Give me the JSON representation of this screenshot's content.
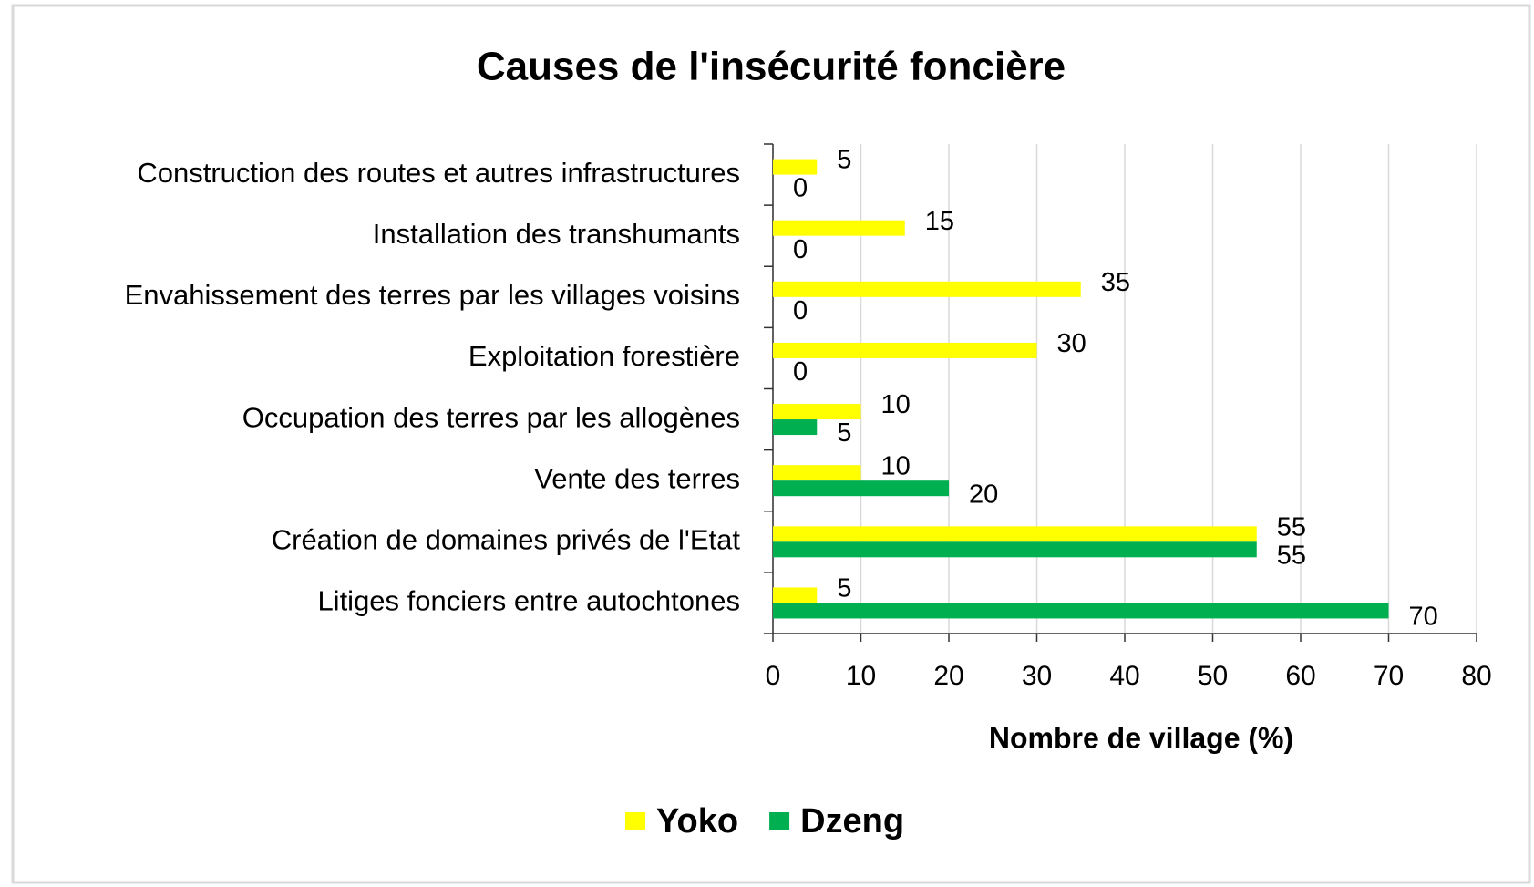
{
  "chart_data": {
    "type": "barh",
    "title": "Causes de l'insécurité foncière",
    "categories": [
      "Construction des routes et autres infrastructures",
      "Installation des transhumants",
      "Envahissement des terres par les villages voisins",
      "Exploitation forestière",
      "Occupation des terres par les allogènes",
      "Vente des terres",
      "Création de domaines privés de l'Etat",
      "Litiges fonciers entre autochtones"
    ],
    "series": [
      {
        "name": "Yoko",
        "color": "#ffff00",
        "values": [
          5,
          15,
          35,
          30,
          10,
          10,
          55,
          5
        ]
      },
      {
        "name": "Dzeng",
        "color": "#00b050",
        "values": [
          0,
          0,
          0,
          0,
          5,
          20,
          55,
          70
        ]
      }
    ],
    "xlabel": "Nombre de village (%)",
    "xlim": [
      0,
      80
    ],
    "xticks": [
      0,
      10,
      20,
      30,
      40,
      50,
      60,
      70,
      80
    ],
    "grid": true,
    "legend": "bottom"
  }
}
